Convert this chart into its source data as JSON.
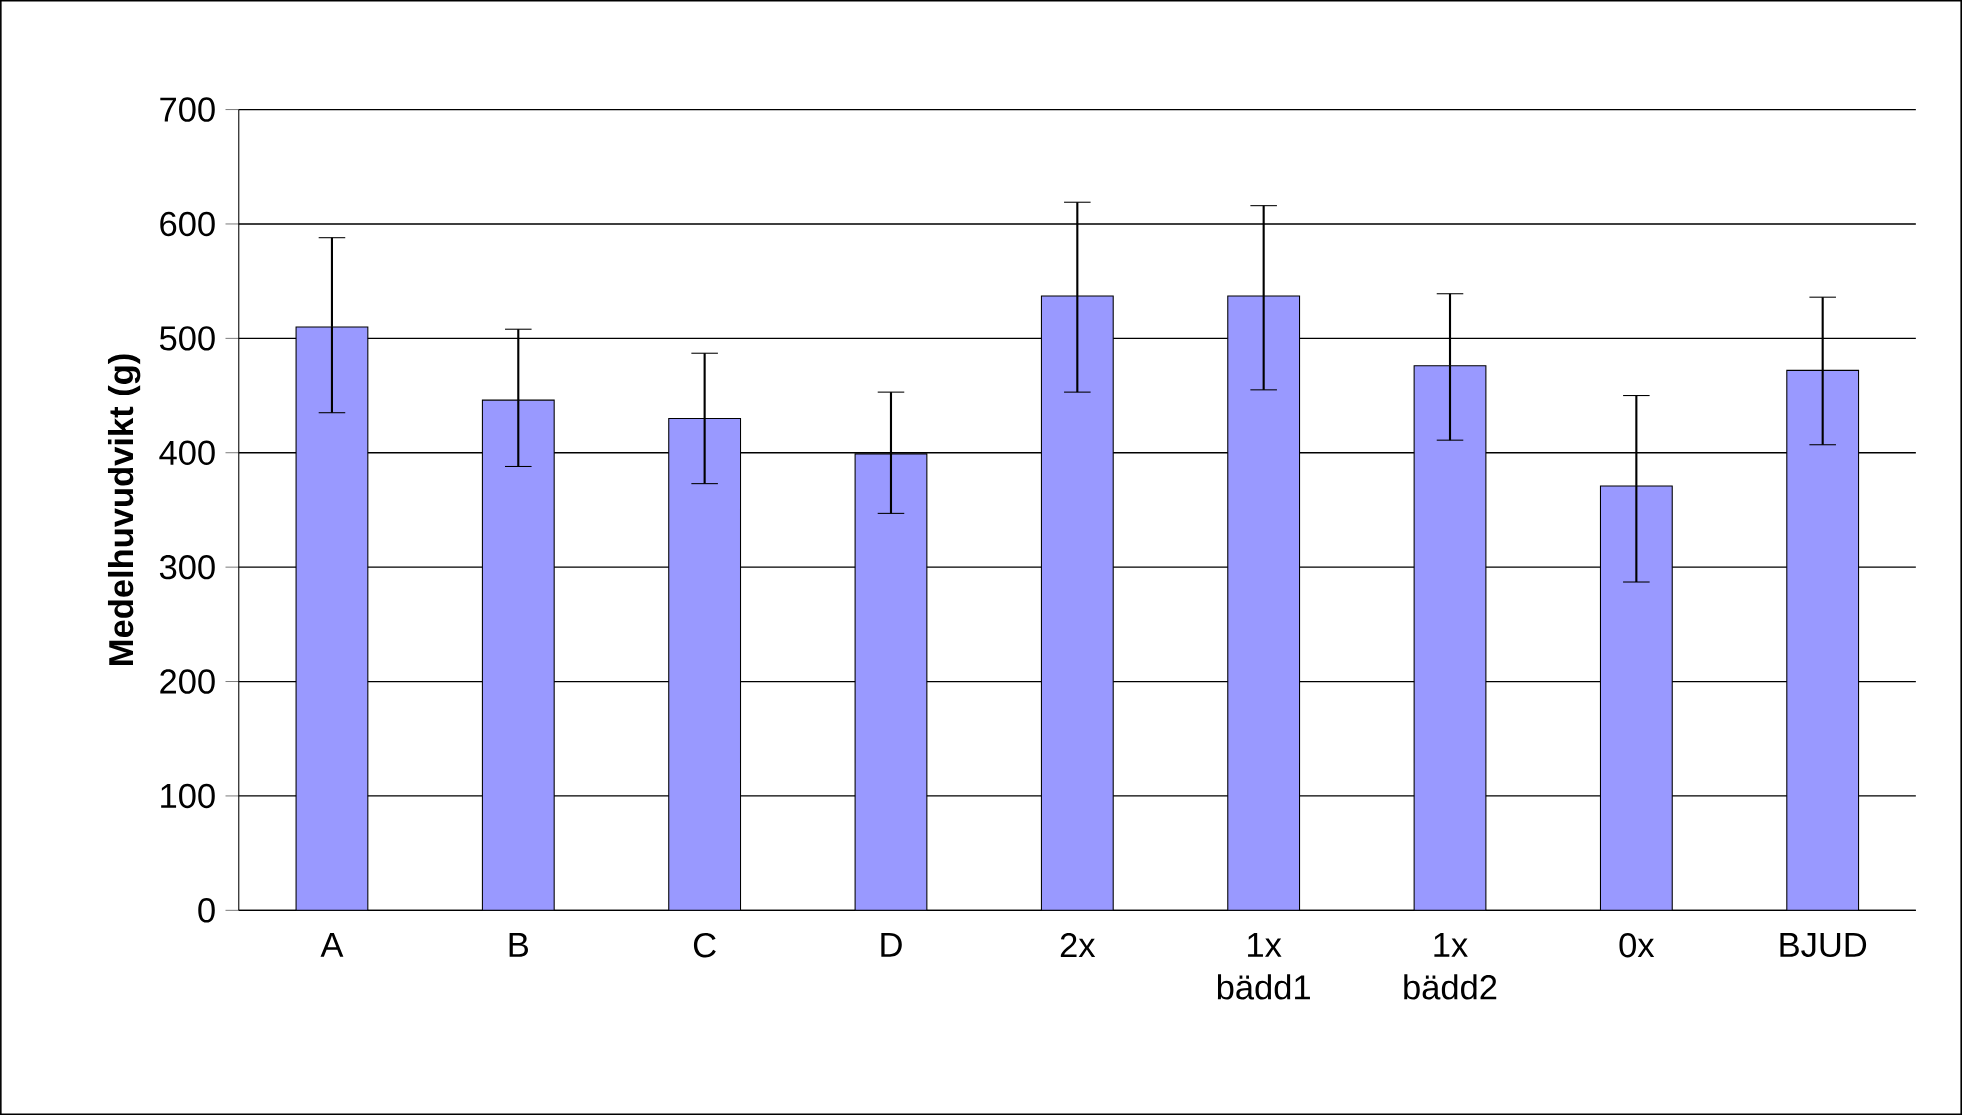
{
  "chart_data": {
    "type": "bar",
    "ylabel": "Medelhuvudvikt (g)",
    "categories": [
      "A",
      "B",
      "C",
      "D",
      "2x",
      "1x bädd1",
      "1x bädd2",
      "0x",
      "BJUD"
    ],
    "values": [
      510,
      446,
      430,
      399,
      537,
      537,
      476,
      371,
      472
    ],
    "errors": [
      [
        435,
        588
      ],
      [
        388,
        508
      ],
      [
        373,
        487
      ],
      [
        347,
        453
      ],
      [
        453,
        619
      ],
      [
        455,
        616
      ],
      [
        411,
        539
      ],
      [
        287,
        450
      ],
      [
        407,
        536
      ]
    ],
    "color": "#9999ff",
    "ylim": [
      0,
      700
    ],
    "yticks": [
      0,
      100,
      200,
      300,
      400,
      500,
      600,
      700
    ],
    "grid": "y"
  }
}
